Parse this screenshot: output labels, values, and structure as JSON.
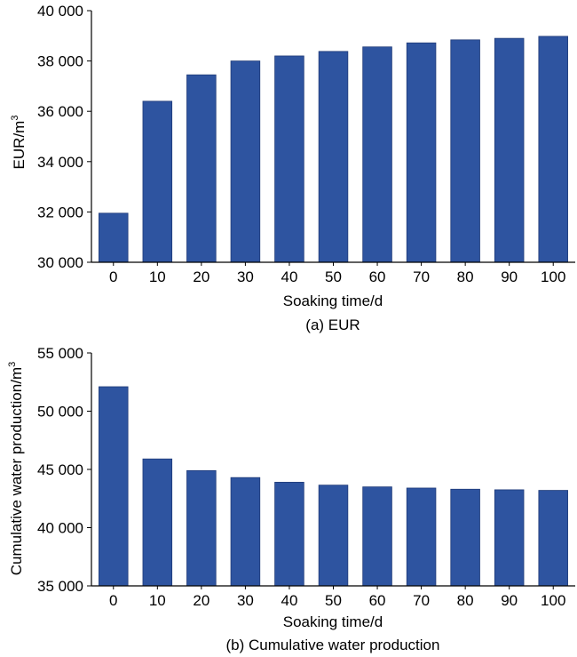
{
  "chart_data": [
    {
      "type": "bar",
      "title": "",
      "caption": "(a) EUR",
      "xlabel": "Soaking time/d",
      "ylabel": "EUR/m",
      "ylabel_superscript": "3",
      "categories": [
        "0",
        "10",
        "20",
        "30",
        "40",
        "50",
        "60",
        "70",
        "80",
        "90",
        "100"
      ],
      "values": [
        31950,
        36400,
        37450,
        38000,
        38200,
        38380,
        38560,
        38720,
        38840,
        38900,
        38980
      ],
      "ylim": [
        30000,
        40000
      ],
      "yticks": [
        30000,
        32000,
        34000,
        36000,
        38000,
        40000
      ],
      "ytick_labels": [
        "30 000",
        "32 000",
        "34 000",
        "36 000",
        "38 000",
        "40 000"
      ],
      "grid": false,
      "bar_color": "#2E54A0"
    },
    {
      "type": "bar",
      "title": "",
      "caption": "(b) Cumulative water production",
      "xlabel": "Soaking time/d",
      "ylabel": "Cumulative water production/m",
      "ylabel_superscript": "3",
      "categories": [
        "0",
        "10",
        "20",
        "30",
        "40",
        "50",
        "60",
        "70",
        "80",
        "90",
        "100"
      ],
      "values": [
        52100,
        45900,
        44900,
        44300,
        43900,
        43650,
        43500,
        43400,
        43300,
        43250,
        43200
      ],
      "ylim": [
        35000,
        55000
      ],
      "yticks": [
        35000,
        40000,
        45000,
        50000,
        55000
      ],
      "ytick_labels": [
        "35 000",
        "40 000",
        "45 000",
        "50 000",
        "55 000"
      ],
      "grid": false,
      "bar_color": "#2E54A0"
    }
  ]
}
